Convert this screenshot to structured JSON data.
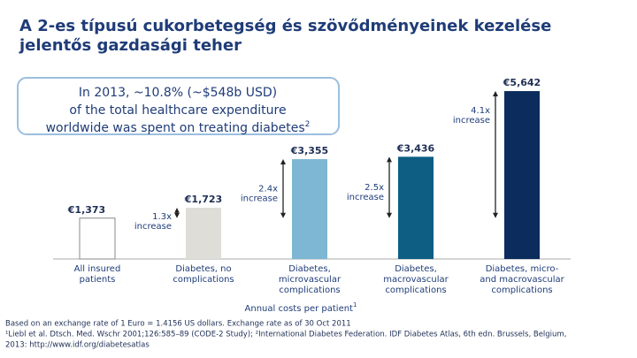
{
  "chart_data": {
    "type": "bar",
    "title": [
      "A 2-es típusú cukorbetegség és szövődményeinek kezelése",
      "jelentős gazdasági teher"
    ],
    "callout": [
      "In 2013, ~10.8% (~$548b USD)",
      "of the total healthcare expenditure",
      "worldwide was spent on treating diabetes"
    ],
    "callout_sup": "2",
    "categories": [
      [
        "All insured",
        "patients"
      ],
      [
        "Diabetes, no",
        "complications"
      ],
      [
        "Diabetes,",
        "microvascular",
        "complications"
      ],
      [
        "Diabetes,",
        "macrovascular",
        "complications"
      ],
      [
        "Diabetes, micro-",
        "and macrovascular",
        "complications"
      ]
    ],
    "values": [
      1373,
      1723,
      3355,
      3436,
      5642
    ],
    "value_labels": [
      "€1,373",
      "€1,723",
      "€3,355",
      "€3,436",
      "€5,642"
    ],
    "colors": [
      "#ffffff",
      "#deddd8",
      "#7db7d3",
      "#0e5e84",
      "#0b2c5c"
    ],
    "annotations": [
      null,
      [
        "1.3x",
        "increase"
      ],
      [
        "2.4x",
        "increase"
      ],
      [
        "2.5x",
        "increase"
      ],
      [
        "4.1x",
        "increase"
      ]
    ],
    "ylim": [
      0,
      6000
    ],
    "x_label": "Annual costs per patient",
    "x_label_sup": "1",
    "footnotes": [
      "Based on an exchange rate of 1 Euro = 1.4156 US dollars. Exchange rate as of 30 Oct 2011",
      "¹Liebl et al. Dtsch. Med. Wschr 2001;126:585–89 (CODE-2 Study); ²International Diabetes Federation. IDF Diabetes Atlas, 6th edn. Brussels, Belgium,",
      "2013: http://www.idf.org/diabetesatlas"
    ]
  }
}
